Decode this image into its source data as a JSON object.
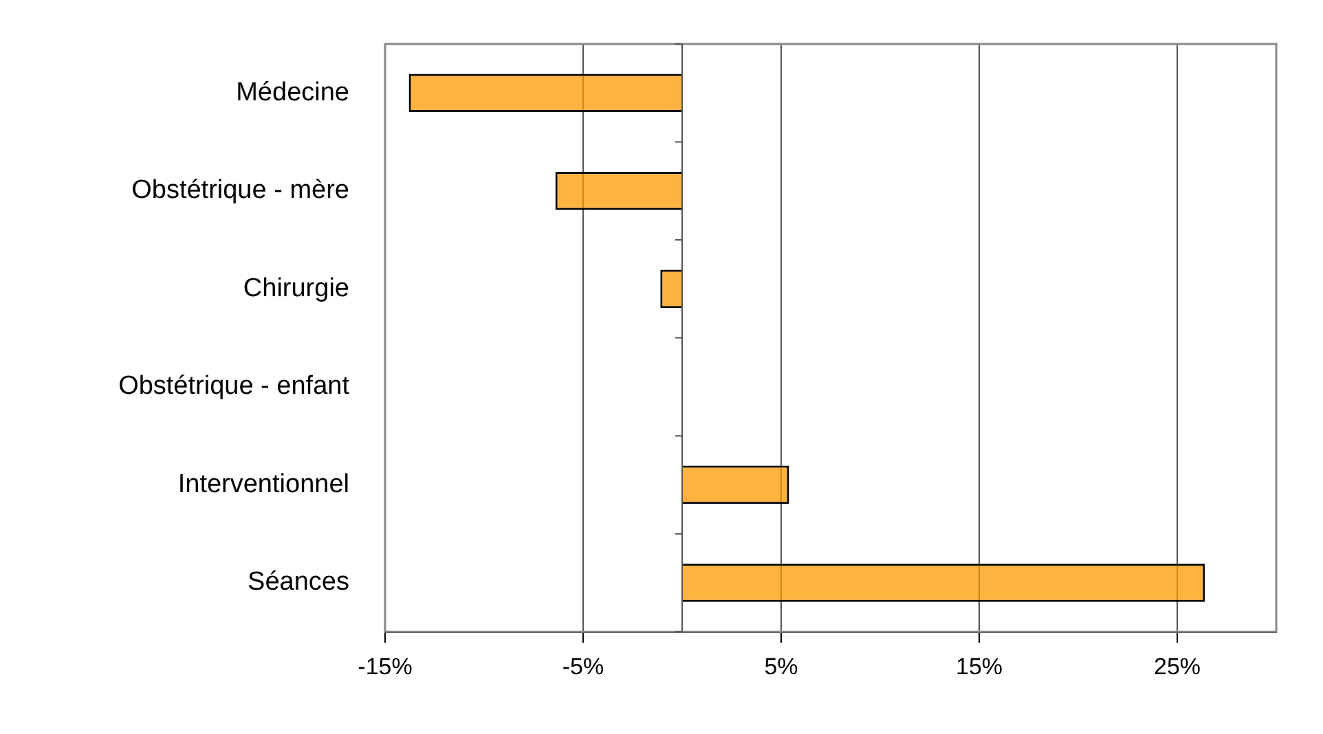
{
  "chart_data": {
    "type": "bar",
    "orientation": "horizontal",
    "categories": [
      "Médecine",
      "Obstétrique - mère",
      "Chirurgie",
      "Obstétrique - enfant",
      "Interventionnel",
      "Séances"
    ],
    "values": [
      -13.8,
      -6.4,
      -1.1,
      0,
      5.4,
      26.4
    ],
    "color": "#ff9900",
    "xlim": [
      -15,
      30
    ],
    "xticks": [
      {
        "value": -15,
        "label": "-15%"
      },
      {
        "value": -5,
        "label": "-5%"
      },
      {
        "value": 5,
        "label": "5%"
      },
      {
        "value": 15,
        "label": "15%"
      },
      {
        "value": 25,
        "label": "25%"
      }
    ],
    "grid": "x",
    "legend": false
  }
}
